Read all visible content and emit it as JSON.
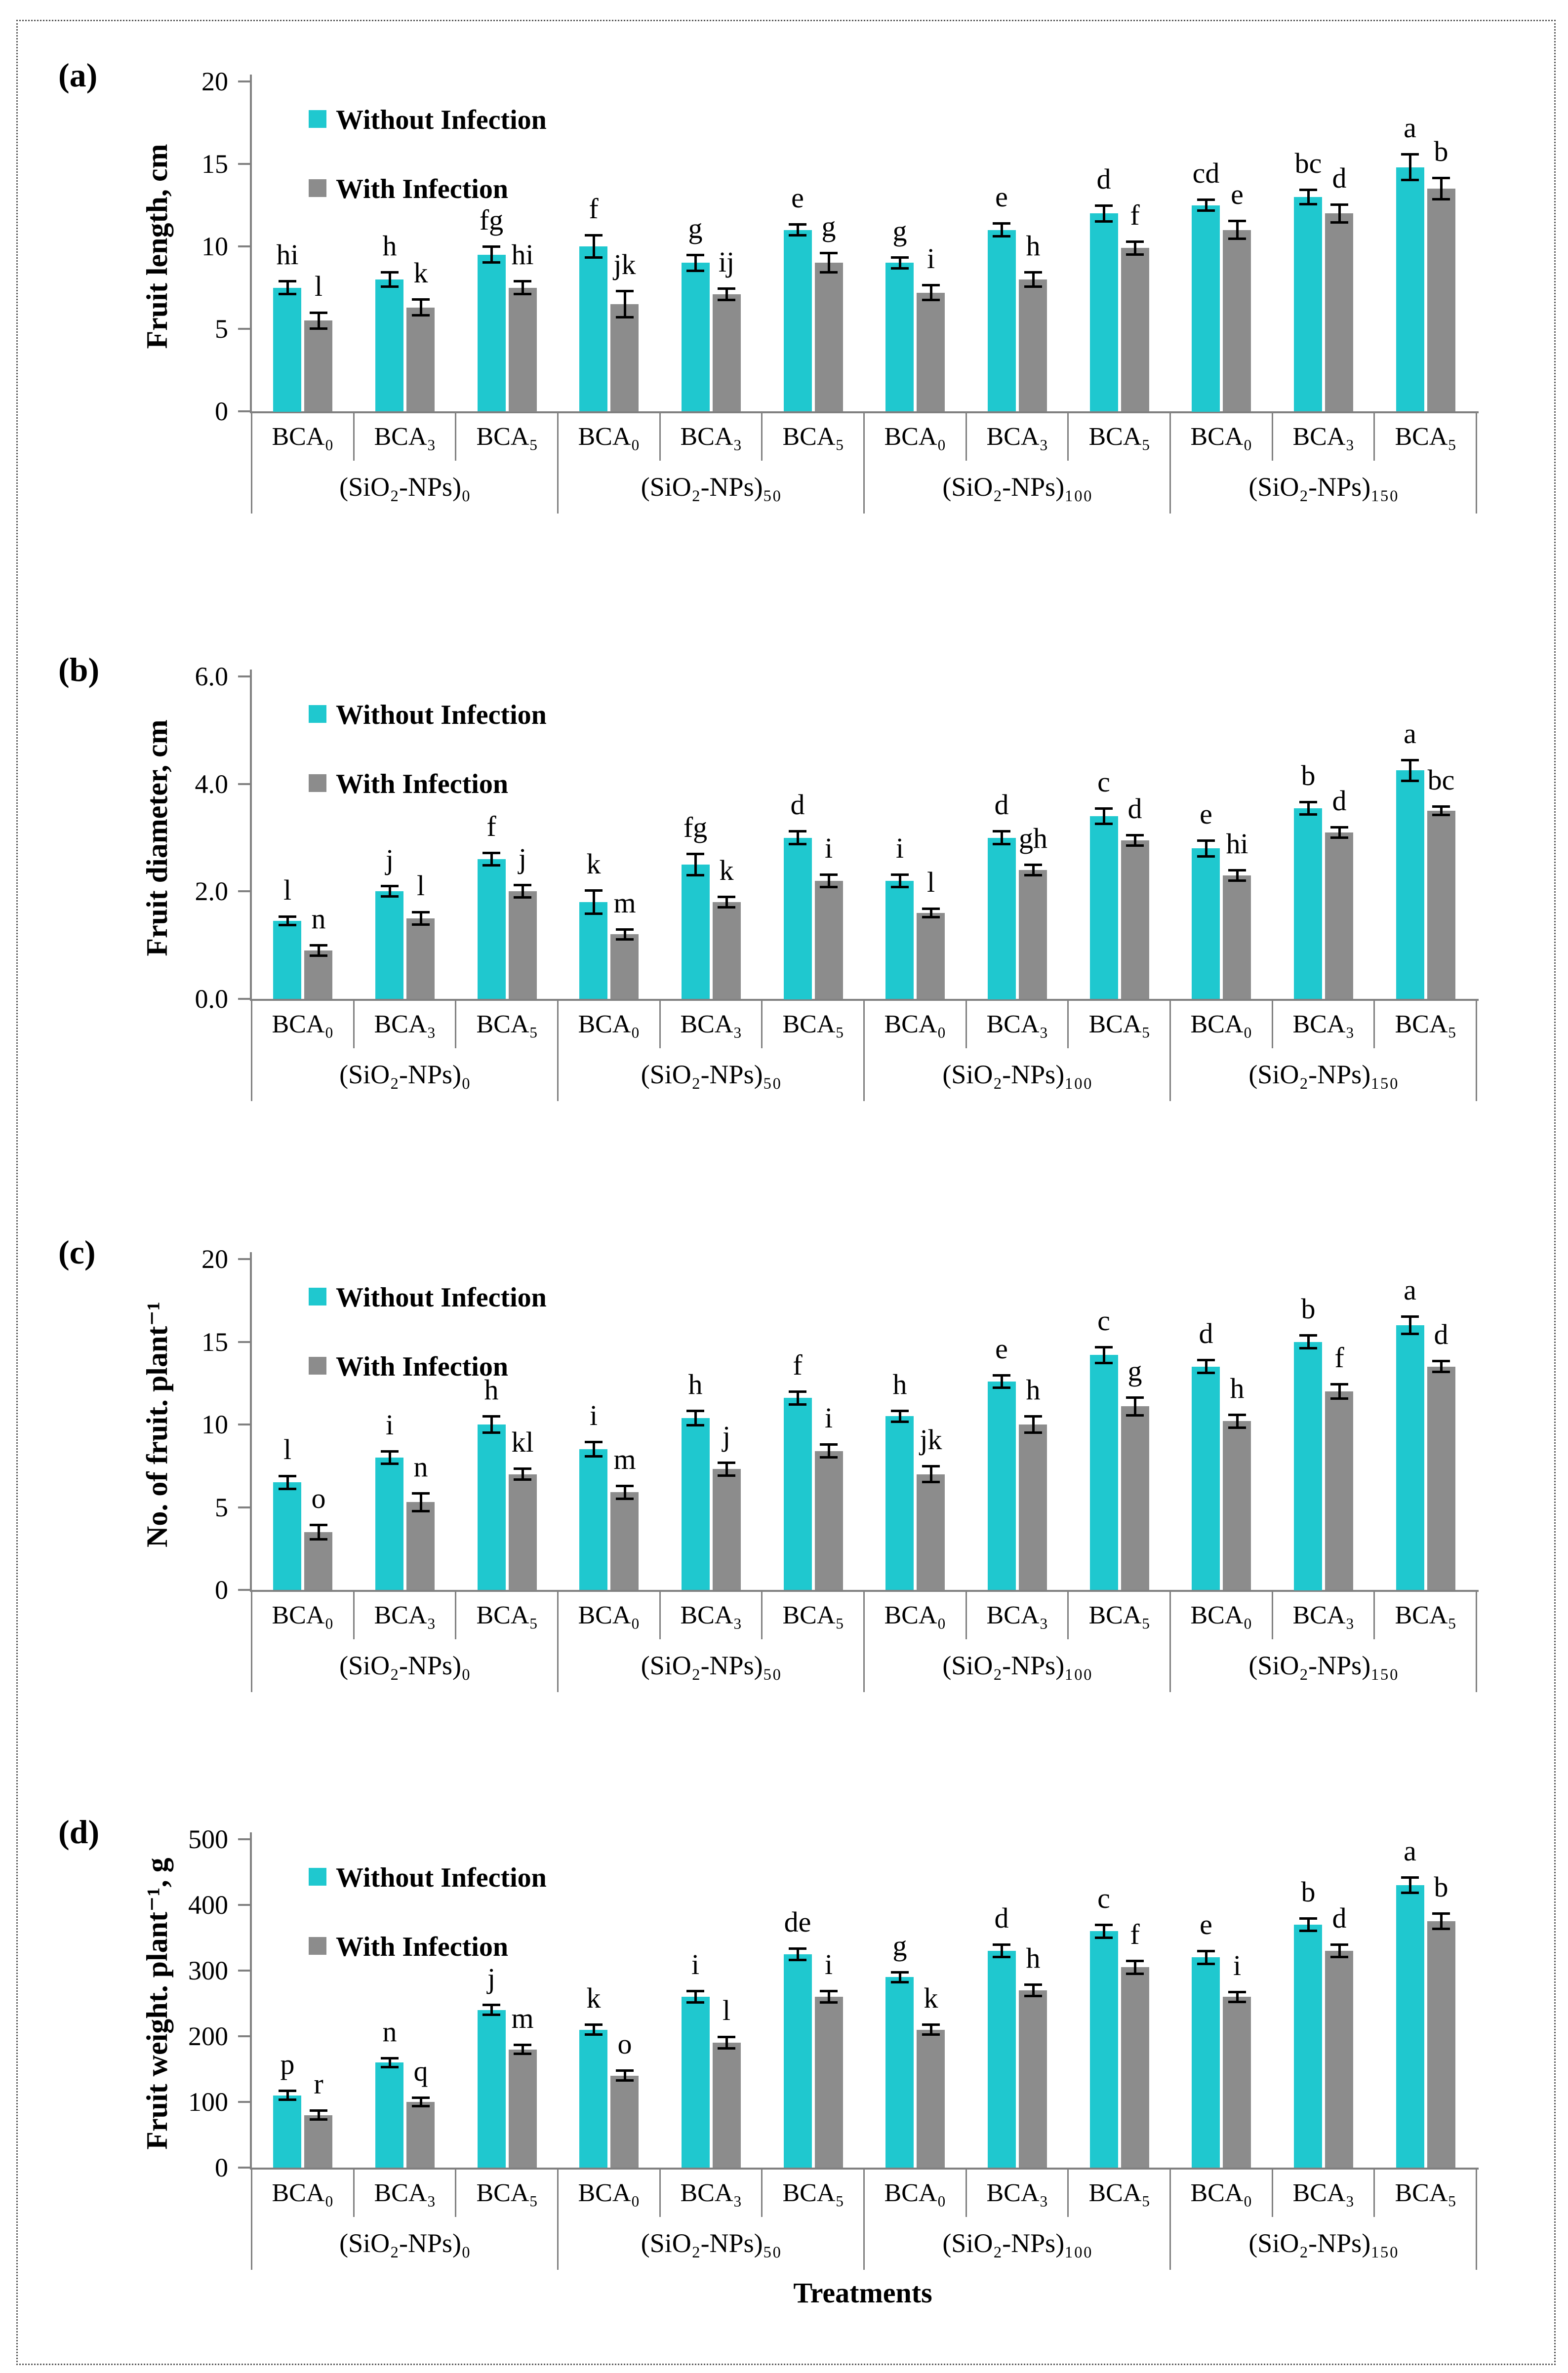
{
  "figure": {
    "x_axis_title": "Treatments",
    "legend": [
      {
        "label": "Without Infection",
        "color": "#1fc8cf"
      },
      {
        "label": "With Infection",
        "color": "#8c8c8c"
      }
    ],
    "colors": {
      "axis": "#808080",
      "error": "#000000",
      "without": "#1fc8cf",
      "with": "#8c8c8c"
    }
  },
  "chart_data": [
    {
      "key": "a",
      "panel_label": "(a)",
      "type": "bar",
      "ylabel": "Fruit length, cm",
      "ylim": [
        0,
        20
      ],
      "yticks": [
        0,
        5,
        10,
        15,
        20
      ],
      "ytick_labels": [
        "0",
        "5",
        "10",
        "15",
        "20"
      ],
      "series_names": [
        "Without Infection",
        "With Infection"
      ],
      "groups": [
        {
          "label": "(SiO₂-NPs)₀",
          "bars": [
            {
              "category": "BCA₀",
              "without": {
                "value": 7.5,
                "error": 0.4,
                "letter": "hi"
              },
              "with": {
                "value": 5.5,
                "error": 0.5,
                "letter": "l"
              }
            },
            {
              "category": "BCA₃",
              "without": {
                "value": 8.0,
                "error": 0.45,
                "letter": "h"
              },
              "with": {
                "value": 6.3,
                "error": 0.5,
                "letter": "k"
              }
            },
            {
              "category": "BCA₅",
              "without": {
                "value": 9.5,
                "error": 0.5,
                "letter": "fg"
              },
              "with": {
                "value": 7.5,
                "error": 0.4,
                "letter": "hi"
              }
            }
          ]
        },
        {
          "label": "(SiO₂-NPs)₅₀",
          "bars": [
            {
              "category": "BCA₀",
              "without": {
                "value": 10.0,
                "error": 0.7,
                "letter": "f"
              },
              "with": {
                "value": 6.5,
                "error": 0.8,
                "letter": "jk"
              }
            },
            {
              "category": "BCA₃",
              "without": {
                "value": 9.0,
                "error": 0.5,
                "letter": "g"
              },
              "with": {
                "value": 7.1,
                "error": 0.35,
                "letter": "ij"
              }
            },
            {
              "category": "BCA₅",
              "without": {
                "value": 11.0,
                "error": 0.35,
                "letter": "e"
              },
              "with": {
                "value": 9.0,
                "error": 0.6,
                "letter": "g"
              }
            }
          ]
        },
        {
          "label": "(SiO₂-NPs)₁₀₀",
          "bars": [
            {
              "category": "BCA₀",
              "without": {
                "value": 9.0,
                "error": 0.35,
                "letter": "g"
              },
              "with": {
                "value": 7.2,
                "error": 0.45,
                "letter": "i"
              }
            },
            {
              "category": "BCA₃",
              "without": {
                "value": 11.0,
                "error": 0.4,
                "letter": "e"
              },
              "with": {
                "value": 8.0,
                "error": 0.45,
                "letter": "h"
              }
            },
            {
              "category": "BCA₅",
              "without": {
                "value": 12.0,
                "error": 0.5,
                "letter": "d"
              },
              "with": {
                "value": 9.9,
                "error": 0.4,
                "letter": "f"
              }
            }
          ]
        },
        {
          "label": "(SiO₂-NPs)₁₅₀",
          "bars": [
            {
              "category": "BCA₀",
              "without": {
                "value": 12.5,
                "error": 0.35,
                "letter": "cd"
              },
              "with": {
                "value": 11.0,
                "error": 0.55,
                "letter": "e"
              }
            },
            {
              "category": "BCA₃",
              "without": {
                "value": 13.0,
                "error": 0.45,
                "letter": "bc"
              },
              "with": {
                "value": 12.0,
                "error": 0.55,
                "letter": "d"
              }
            },
            {
              "category": "BCA₅",
              "without": {
                "value": 14.8,
                "error": 0.8,
                "letter": "a"
              },
              "with": {
                "value": 13.5,
                "error": 0.65,
                "letter": "b"
              }
            }
          ]
        }
      ]
    },
    {
      "key": "b",
      "panel_label": "(b)",
      "type": "bar",
      "ylabel": "Fruit diameter, cm",
      "ylim": [
        0,
        6
      ],
      "yticks": [
        0,
        2,
        4,
        6
      ],
      "ytick_labels": [
        "0.0",
        "2.0",
        "4.0",
        "6.0"
      ],
      "series_names": [
        "Without Infection",
        "With Infection"
      ],
      "groups": [
        {
          "label": "(SiO₂-NPs)₀",
          "bars": [
            {
              "category": "BCA₀",
              "without": {
                "value": 1.45,
                "error": 0.08,
                "letter": "l"
              },
              "with": {
                "value": 0.9,
                "error": 0.1,
                "letter": "n"
              }
            },
            {
              "category": "BCA₃",
              "without": {
                "value": 2.0,
                "error": 0.1,
                "letter": "j"
              },
              "with": {
                "value": 1.5,
                "error": 0.12,
                "letter": "l"
              }
            },
            {
              "category": "BCA₅",
              "without": {
                "value": 2.6,
                "error": 0.12,
                "letter": "f"
              },
              "with": {
                "value": 2.0,
                "error": 0.12,
                "letter": "j"
              }
            }
          ]
        },
        {
          "label": "(SiO₂-NPs)₅₀",
          "bars": [
            {
              "category": "BCA₀",
              "without": {
                "value": 1.8,
                "error": 0.22,
                "letter": "k"
              },
              "with": {
                "value": 1.2,
                "error": 0.1,
                "letter": "m"
              }
            },
            {
              "category": "BCA₃",
              "without": {
                "value": 2.5,
                "error": 0.2,
                "letter": "fg"
              },
              "with": {
                "value": 1.8,
                "error": 0.1,
                "letter": "k"
              }
            },
            {
              "category": "BCA₅",
              "without": {
                "value": 3.0,
                "error": 0.12,
                "letter": "d"
              },
              "with": {
                "value": 2.2,
                "error": 0.12,
                "letter": "i"
              }
            }
          ]
        },
        {
          "label": "(SiO₂-NPs)₁₀₀",
          "bars": [
            {
              "category": "BCA₀",
              "without": {
                "value": 2.2,
                "error": 0.12,
                "letter": "i"
              },
              "with": {
                "value": 1.6,
                "error": 0.08,
                "letter": "l"
              }
            },
            {
              "category": "BCA₃",
              "without": {
                "value": 3.0,
                "error": 0.12,
                "letter": "d"
              },
              "with": {
                "value": 2.4,
                "error": 0.1,
                "letter": "gh"
              }
            },
            {
              "category": "BCA₅",
              "without": {
                "value": 3.4,
                "error": 0.15,
                "letter": "c"
              },
              "with": {
                "value": 2.95,
                "error": 0.1,
                "letter": "d"
              }
            }
          ]
        },
        {
          "label": "(SiO₂-NPs)₁₅₀",
          "bars": [
            {
              "category": "BCA₀",
              "without": {
                "value": 2.8,
                "error": 0.15,
                "letter": "e"
              },
              "with": {
                "value": 2.3,
                "error": 0.1,
                "letter": "hi"
              }
            },
            {
              "category": "BCA₃",
              "without": {
                "value": 3.55,
                "error": 0.12,
                "letter": "b"
              },
              "with": {
                "value": 3.1,
                "error": 0.1,
                "letter": "d"
              }
            },
            {
              "category": "BCA₅",
              "without": {
                "value": 4.25,
                "error": 0.2,
                "letter": "a"
              },
              "with": {
                "value": 3.5,
                "error": 0.08,
                "letter": "bc"
              }
            }
          ]
        }
      ]
    },
    {
      "key": "c",
      "panel_label": "(c)",
      "type": "bar",
      "ylabel": "No. of fruit. plant⁻¹",
      "ylim": [
        0,
        20
      ],
      "yticks": [
        0,
        5,
        10,
        15,
        20
      ],
      "ytick_labels": [
        "0",
        "5",
        "10",
        "15",
        "20"
      ],
      "series_names": [
        "Without Infection",
        "With Infection"
      ],
      "groups": [
        {
          "label": "(SiO₂-NPs)₀",
          "bars": [
            {
              "category": "BCA₀",
              "without": {
                "value": 6.5,
                "error": 0.4,
                "letter": "l"
              },
              "with": {
                "value": 3.5,
                "error": 0.45,
                "letter": "o"
              }
            },
            {
              "category": "BCA₃",
              "without": {
                "value": 8.0,
                "error": 0.4,
                "letter": "i"
              },
              "with": {
                "value": 5.3,
                "error": 0.55,
                "letter": "n"
              }
            },
            {
              "category": "BCA₅",
              "without": {
                "value": 10.0,
                "error": 0.5,
                "letter": "h"
              },
              "with": {
                "value": 7.0,
                "error": 0.35,
                "letter": "kl"
              }
            }
          ]
        },
        {
          "label": "(SiO₂-NPs)₅₀",
          "bars": [
            {
              "category": "BCA₀",
              "without": {
                "value": 8.5,
                "error": 0.45,
                "letter": "i"
              },
              "with": {
                "value": 5.9,
                "error": 0.4,
                "letter": "m"
              }
            },
            {
              "category": "BCA₃",
              "without": {
                "value": 10.4,
                "error": 0.45,
                "letter": "h"
              },
              "with": {
                "value": 7.3,
                "error": 0.4,
                "letter": "j"
              }
            },
            {
              "category": "BCA₅",
              "without": {
                "value": 11.6,
                "error": 0.4,
                "letter": "f"
              },
              "with": {
                "value": 8.4,
                "error": 0.4,
                "letter": "i"
              }
            }
          ]
        },
        {
          "label": "(SiO₂-NPs)₁₀₀",
          "bars": [
            {
              "category": "BCA₀",
              "without": {
                "value": 10.5,
                "error": 0.35,
                "letter": "h"
              },
              "with": {
                "value": 7.0,
                "error": 0.5,
                "letter": "jk"
              }
            },
            {
              "category": "BCA₃",
              "without": {
                "value": 12.6,
                "error": 0.4,
                "letter": "e"
              },
              "with": {
                "value": 10.0,
                "error": 0.5,
                "letter": "h"
              }
            },
            {
              "category": "BCA₅",
              "without": {
                "value": 14.2,
                "error": 0.5,
                "letter": "c"
              },
              "with": {
                "value": 11.1,
                "error": 0.55,
                "letter": "g"
              }
            }
          ]
        },
        {
          "label": "(SiO₂-NPs)₁₅₀",
          "bars": [
            {
              "category": "BCA₀",
              "without": {
                "value": 13.5,
                "error": 0.4,
                "letter": "d"
              },
              "with": {
                "value": 10.2,
                "error": 0.4,
                "letter": "h"
              }
            },
            {
              "category": "BCA₃",
              "without": {
                "value": 15.0,
                "error": 0.4,
                "letter": "b"
              },
              "with": {
                "value": 12.0,
                "error": 0.45,
                "letter": "f"
              }
            },
            {
              "category": "BCA₅",
              "without": {
                "value": 16.0,
                "error": 0.55,
                "letter": "a"
              },
              "with": {
                "value": 13.5,
                "error": 0.35,
                "letter": "d"
              }
            }
          ]
        }
      ]
    },
    {
      "key": "d",
      "panel_label": "(d)",
      "type": "bar",
      "ylabel": "Fruit weight. plant⁻¹, g",
      "ylim": [
        0,
        500
      ],
      "yticks": [
        0,
        100,
        200,
        300,
        400,
        500
      ],
      "ytick_labels": [
        "0",
        "100",
        "200",
        "300",
        "400",
        "500"
      ],
      "series_names": [
        "Without Infection",
        "With Infection"
      ],
      "groups": [
        {
          "label": "(SiO₂-NPs)₀",
          "bars": [
            {
              "category": "BCA₀",
              "without": {
                "value": 110,
                "error": 7,
                "letter": "p"
              },
              "with": {
                "value": 80,
                "error": 7,
                "letter": "r"
              }
            },
            {
              "category": "BCA₃",
              "without": {
                "value": 160,
                "error": 7,
                "letter": "n"
              },
              "with": {
                "value": 100,
                "error": 7,
                "letter": "q"
              }
            },
            {
              "category": "BCA₅",
              "without": {
                "value": 240,
                "error": 8,
                "letter": "j"
              },
              "with": {
                "value": 180,
                "error": 7,
                "letter": "m"
              }
            }
          ]
        },
        {
          "label": "(SiO₂-NPs)₅₀",
          "bars": [
            {
              "category": "BCA₀",
              "without": {
                "value": 210,
                "error": 8,
                "letter": "k"
              },
              "with": {
                "value": 140,
                "error": 8,
                "letter": "o"
              }
            },
            {
              "category": "BCA₃",
              "without": {
                "value": 260,
                "error": 9,
                "letter": "i"
              },
              "with": {
                "value": 190,
                "error": 9,
                "letter": "l"
              }
            },
            {
              "category": "BCA₅",
              "without": {
                "value": 325,
                "error": 9,
                "letter": "de"
              },
              "with": {
                "value": 260,
                "error": 9,
                "letter": "i"
              }
            }
          ]
        },
        {
          "label": "(SiO₂-NPs)₁₀₀",
          "bars": [
            {
              "category": "BCA₀",
              "without": {
                "value": 290,
                "error": 8,
                "letter": "g"
              },
              "with": {
                "value": 210,
                "error": 8,
                "letter": "k"
              }
            },
            {
              "category": "BCA₃",
              "without": {
                "value": 330,
                "error": 10,
                "letter": "d"
              },
              "with": {
                "value": 270,
                "error": 9,
                "letter": "h"
              }
            },
            {
              "category": "BCA₅",
              "without": {
                "value": 360,
                "error": 10,
                "letter": "c"
              },
              "with": {
                "value": 305,
                "error": 10,
                "letter": "f"
              }
            }
          ]
        },
        {
          "label": "(SiO₂-NPs)₁₅₀",
          "bars": [
            {
              "category": "BCA₀",
              "without": {
                "value": 320,
                "error": 10,
                "letter": "e"
              },
              "with": {
                "value": 260,
                "error": 8,
                "letter": "i"
              }
            },
            {
              "category": "BCA₃",
              "without": {
                "value": 370,
                "error": 10,
                "letter": "b"
              },
              "with": {
                "value": 330,
                "error": 10,
                "letter": "d"
              }
            },
            {
              "category": "BCA₅",
              "without": {
                "value": 430,
                "error": 12,
                "letter": "a"
              },
              "with": {
                "value": 375,
                "error": 12,
                "letter": "b"
              }
            }
          ]
        }
      ]
    }
  ]
}
